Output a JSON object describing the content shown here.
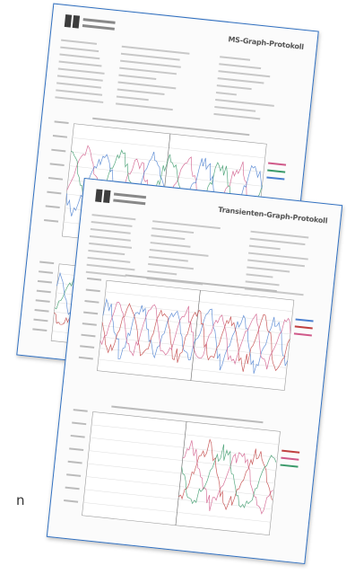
{
  "back_page": {
    "title": "MS-Graph-Protokoll"
  },
  "front_page": {
    "title": "Transienten-Graph-Protokoll"
  },
  "side_text": "n"
}
